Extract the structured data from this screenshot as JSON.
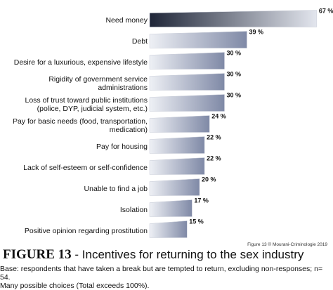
{
  "chart_data": {
    "type": "bar",
    "orientation": "horizontal",
    "figure_label": "FIGURE 13",
    "title": "- Incentives for returning to the sex industry",
    "credit": "Figure 13 © Mourani-Criminologie 2019",
    "notes": [
      "Base: respondents that have taken a break but are tempted to return, excluding non-responses; n= 54.",
      "Many possible choices (Total exceeds 100%)."
    ],
    "categories": [
      "Need money",
      "Debt",
      "Desire for a luxurious, expensive lifestyle",
      "Rigidity of government service\nadministrations",
      "Loss of trust toward public institutions\n(police, DYP, judicial system, etc.)",
      "Pay for basic needs (food, transportation,\nmedication)",
      "Pay for housing",
      "Lack of self-esteem or self-confidence",
      "Unable to find a job",
      "Isolation",
      "Positive opinion regarding prostitution"
    ],
    "values": [
      67,
      39,
      30,
      30,
      30,
      24,
      22,
      22,
      20,
      17,
      15
    ],
    "value_labels": [
      "67 %",
      "39 %",
      "30 %",
      "30 %",
      "30 %",
      "24 %",
      "22 %",
      "22 %",
      "20 %",
      "17 %",
      "15 %"
    ],
    "color": "#7f89a6",
    "highlight_color": "#1f2638"
  }
}
